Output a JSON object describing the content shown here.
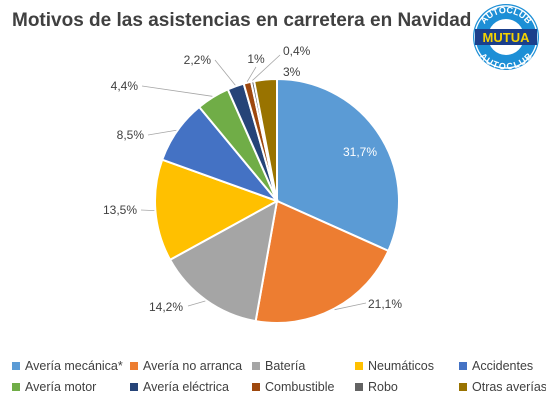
{
  "title": "Motivos de las asistencias en carretera en Navidad",
  "logo": {
    "top_text": "AUTOCLUB",
    "brand": "MUTUA",
    "bottom_text": "AUTOCLUB",
    "colors": {
      "blue": "#1d8fd6",
      "dark": "#1b3f8b",
      "yellow": "#f5d300"
    }
  },
  "chart_data": {
    "type": "pie",
    "title": "Motivos de las asistencias en carretera en Navidad",
    "legend_position": "bottom",
    "start_angle": "12 o'clock, clockwise",
    "categories": [
      "Avería mecánica*",
      "Avería no arranca",
      "Batería",
      "Neumáticos",
      "Accidentes",
      "Avería motor",
      "Avería eléctrica",
      "Combustible",
      "Robo",
      "Otras averías"
    ],
    "values": [
      31.7,
      21.1,
      14.2,
      13.5,
      8.5,
      4.4,
      2.2,
      1,
      0.4,
      3
    ],
    "labels": [
      "31,7%",
      "21,1%",
      "14,2%",
      "13,5%",
      "8,5%",
      "4,4%",
      "2,2%",
      "1%",
      "0,4%",
      "3%"
    ],
    "colors": [
      "#5b9bd5",
      "#ed7d31",
      "#a5a5a5",
      "#ffc000",
      "#4472c4",
      "#70ad47",
      "#264478",
      "#9e480e",
      "#636363",
      "#997300"
    ]
  }
}
